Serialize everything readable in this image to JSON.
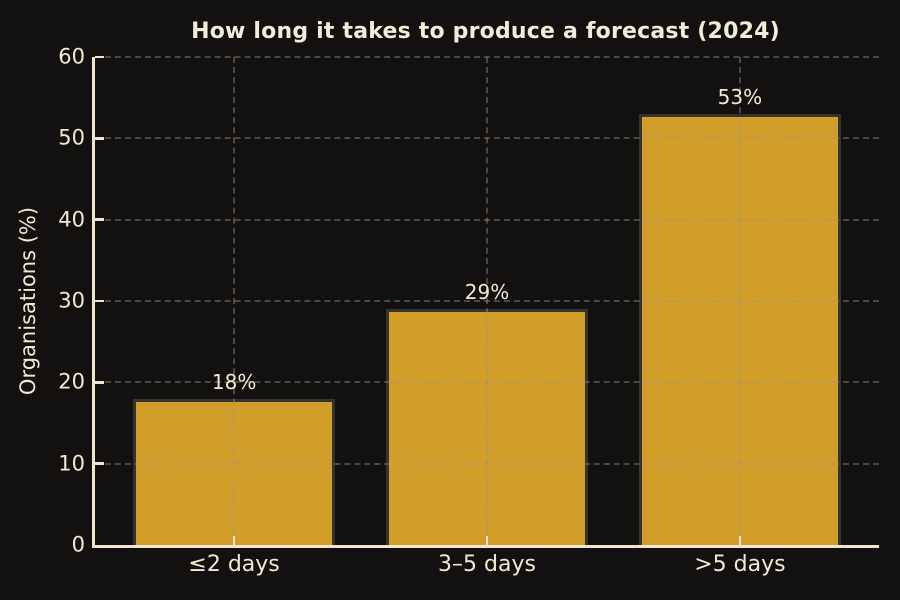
{
  "figure": {
    "title": "How long it takes to produce a forecast (2024)"
  },
  "chart_data": {
    "type": "bar",
    "title": "How long it takes to produce a forecast (2024)",
    "categories": [
      "≤2 days",
      "3–5 days",
      ">5 days"
    ],
    "values": [
      18,
      29,
      53
    ],
    "bar_labels": [
      "18%",
      "29%",
      "53%"
    ],
    "xlabel": "",
    "ylabel": "Organisations (%)",
    "ylim": [
      0,
      60
    ],
    "yticks": [
      0,
      10,
      20,
      30,
      40,
      50,
      60
    ],
    "xlim": [
      -0.55,
      2.55
    ],
    "bar_width": 0.8,
    "grid": "dashed gridlines on both axes, drawn over bars",
    "legend": "none",
    "colors": {
      "background": "#131110",
      "bar_fill": "#d29e2a",
      "bar_edge": "#35332e",
      "text": "#f2e9d3",
      "axis_spine": "#f0e6d0",
      "gridline": "#96948c"
    }
  }
}
